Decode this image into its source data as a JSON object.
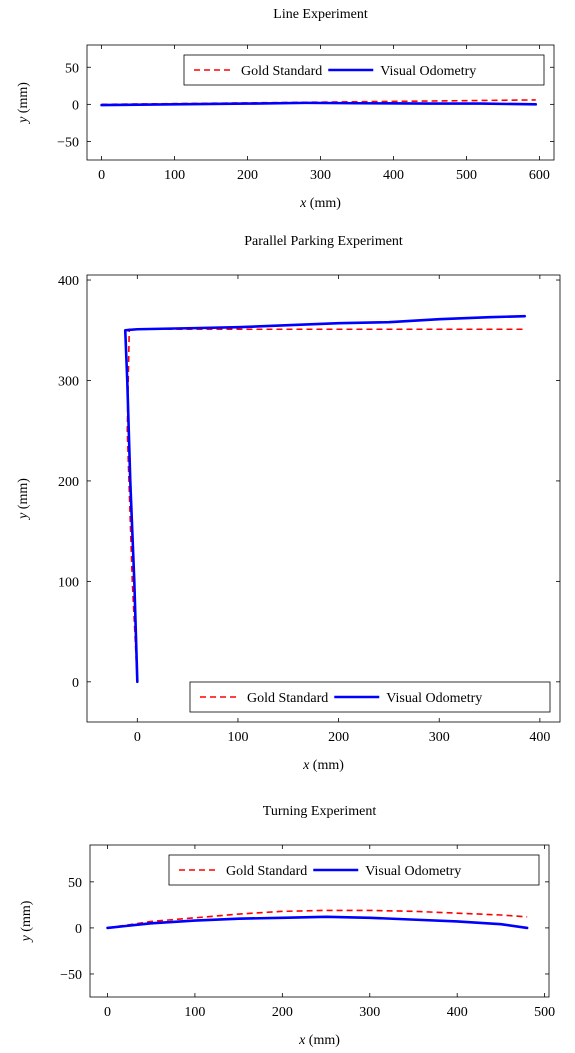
{
  "chart_data": [
    {
      "type": "line",
      "title": "Line Experiment",
      "xlabel_var": "x",
      "xlabel_unit": "(mm)",
      "ylabel_var": "y",
      "ylabel_unit": "(mm)",
      "xlim": [
        -20,
        620
      ],
      "ylim": [
        -75,
        80
      ],
      "xticks": [
        0,
        100,
        200,
        300,
        400,
        500,
        600
      ],
      "yticks": [
        -50,
        0,
        50
      ],
      "ytick_labels": [
        "−50",
        "0",
        "50"
      ],
      "legend_position": "top-right",
      "series": [
        {
          "name": "Gold Standard",
          "color": "#ff0000",
          "style": "dashed",
          "x": [
            0,
            100,
            200,
            300,
            400,
            500,
            595
          ],
          "y": [
            0,
            1,
            2,
            3,
            4,
            5,
            6
          ]
        },
        {
          "name": "Visual Odometry",
          "color": "#0000ff",
          "style": "solid",
          "x": [
            0,
            100,
            200,
            280,
            350,
            450,
            520,
            595
          ],
          "y": [
            -1,
            0,
            1,
            2,
            1.5,
            1,
            1,
            0
          ]
        }
      ]
    },
    {
      "type": "line",
      "title": "Parallel Parking Experiment",
      "xlabel_var": "x",
      "xlabel_unit": "(mm)",
      "ylabel_var": "y",
      "ylabel_unit": "(mm)",
      "xlim": [
        -50,
        420
      ],
      "ylim": [
        -40,
        405
      ],
      "xticks": [
        0,
        100,
        200,
        300,
        400
      ],
      "yticks": [
        0,
        100,
        200,
        300,
        400
      ],
      "ytick_labels": [
        "0",
        "100",
        "200",
        "300",
        "400"
      ],
      "legend_position": "bottom-right",
      "series": [
        {
          "name": "Gold Standard",
          "color": "#ff0000",
          "style": "dashed",
          "x": [
            0,
            -5,
            -10,
            -8,
            385
          ],
          "y": [
            0,
            100,
            250,
            351,
            351
          ]
        },
        {
          "name": "Visual Odometry",
          "color": "#0000ff",
          "style": "solid",
          "x": [
            0,
            -3,
            -7,
            -10,
            -12,
            0,
            50,
            100,
            150,
            200,
            250,
            300,
            350,
            385
          ],
          "y": [
            0,
            100,
            200,
            300,
            350,
            351,
            352,
            353,
            355,
            357,
            358,
            361,
            363,
            364
          ]
        }
      ]
    },
    {
      "type": "line",
      "title": "Turning Experiment",
      "xlabel_var": "x",
      "xlabel_unit": "(mm)",
      "ylabel_var": "y",
      "ylabel_unit": "(mm)",
      "xlim": [
        -20,
        505
      ],
      "ylim": [
        -75,
        90
      ],
      "xticks": [
        0,
        100,
        200,
        300,
        400,
        500
      ],
      "yticks": [
        -50,
        0,
        50
      ],
      "ytick_labels": [
        "−50",
        "0",
        "50"
      ],
      "legend_position": "top-right",
      "series": [
        {
          "name": "Gold Standard",
          "color": "#ff0000",
          "style": "dashed",
          "x": [
            0,
            50,
            100,
            150,
            200,
            250,
            300,
            350,
            400,
            450,
            480
          ],
          "y": [
            0,
            7,
            11,
            15,
            18,
            19,
            19,
            18,
            16,
            14,
            12
          ]
        },
        {
          "name": "Visual Odometry",
          "color": "#0000ff",
          "style": "solid",
          "x": [
            0,
            50,
            100,
            150,
            200,
            250,
            300,
            350,
            400,
            450,
            480
          ],
          "y": [
            0,
            5,
            8,
            10,
            11,
            12,
            11,
            9,
            7,
            4,
            0
          ]
        }
      ]
    }
  ]
}
